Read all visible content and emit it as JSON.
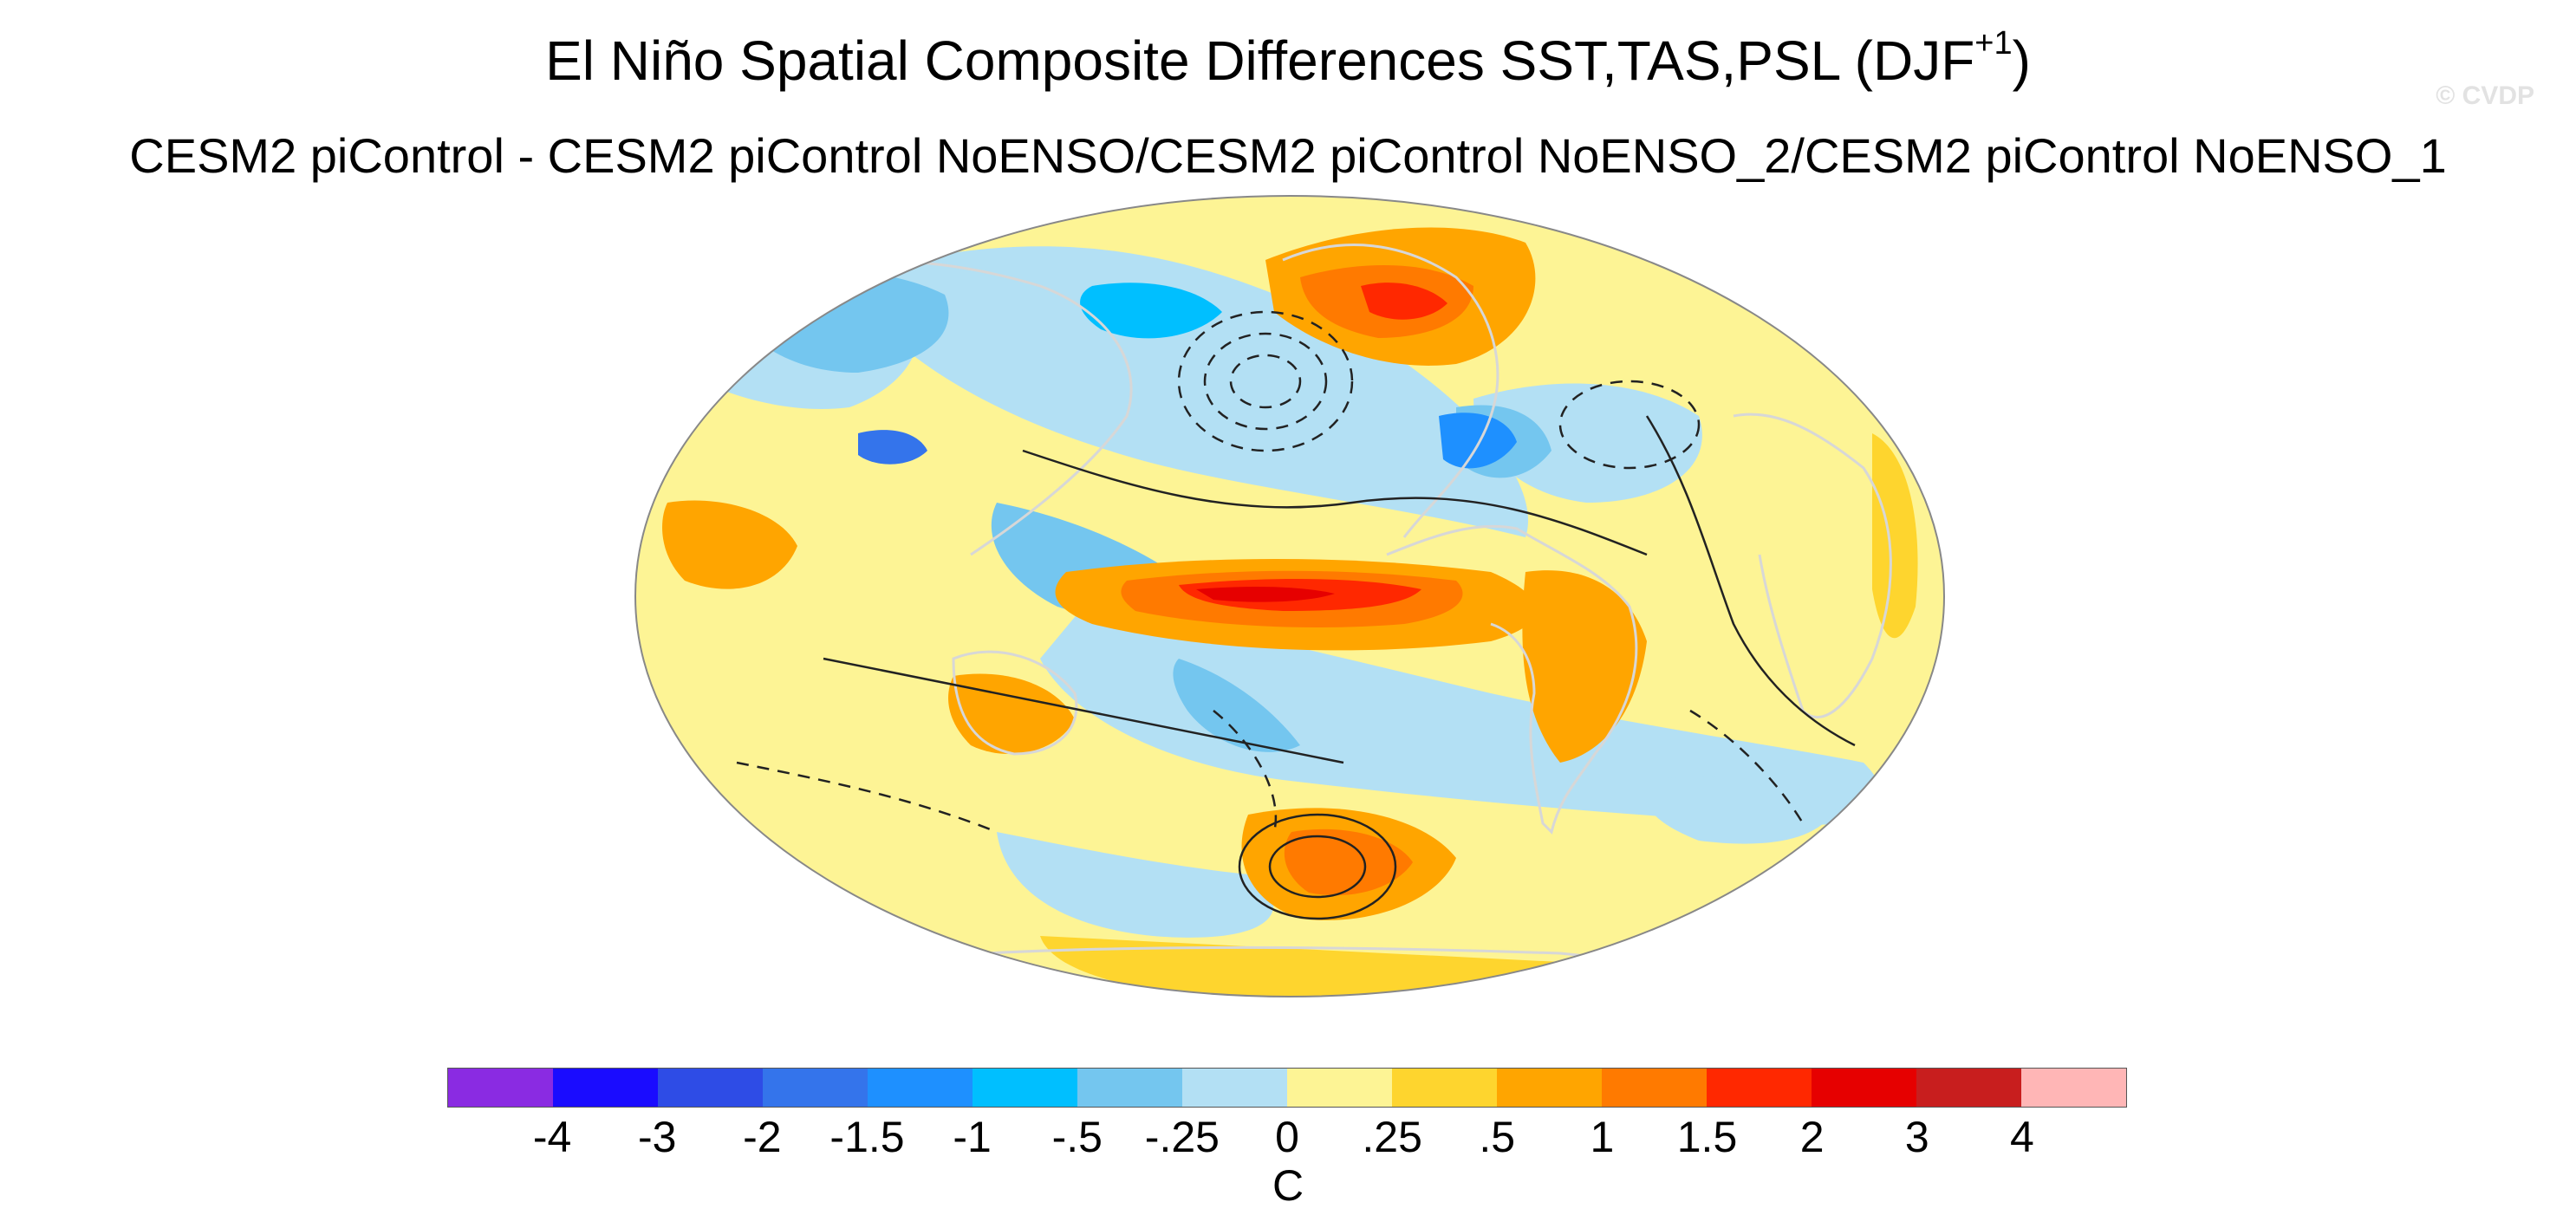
{
  "figure": {
    "title_main": "El Niño Spatial Composite Differences SST,TAS,PSL (DJF",
    "title_sup": "+1",
    "title_end": ")",
    "subtitle": "CESM2 piControl - CESM2 piControl NoENSO/CESM2 piControl NoENSO_2/CESM2 piControl NoENSO_1",
    "watermark": "© CVDP"
  },
  "map": {
    "projection": "robinson",
    "fields": [
      "SST",
      "TAS",
      "PSL"
    ],
    "season": "DJF+1",
    "ocean_default_color": "#fdf495",
    "land_outline_color": "#d7d7d7",
    "contour_color": "#222222"
  },
  "colorbar": {
    "colors": [
      "#8a2be2",
      "#1a0cff",
      "#2e4ce6",
      "#3474eb",
      "#1e90ff",
      "#00bfff",
      "#74c6ef",
      "#b3e0f4",
      "#fdf495",
      "#fed52e",
      "#ffa500",
      "#ff7a00",
      "#ff2800",
      "#e60000",
      "#c81e1e",
      "#ffb6b6"
    ],
    "tick_labels": [
      "-4",
      "-3",
      "-2",
      "-1.5",
      "-1",
      "-.5",
      "-.25",
      "0",
      ".25",
      ".5",
      "1",
      "1.5",
      "2",
      "3",
      "4"
    ],
    "unit": "C"
  }
}
